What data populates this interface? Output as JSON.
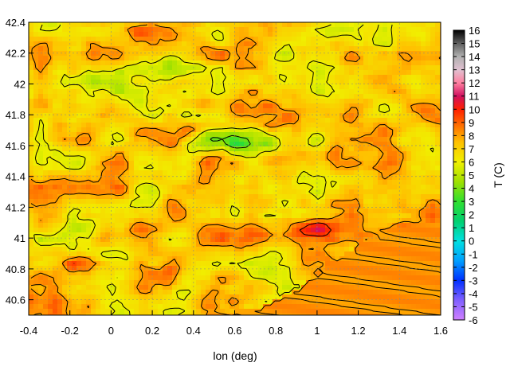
{
  "chart_data": {
    "type": "heatmap",
    "title": "",
    "xlabel": "lon (deg)",
    "ylabel": "",
    "colorbar_label": "T (C)",
    "xlim": [
      -0.4,
      1.6
    ],
    "ylim": [
      40.5,
      42.4
    ],
    "x_ticks": [
      "-0.4",
      "-0.2",
      "0",
      "0.2",
      "0.4",
      "0.6",
      "0.8",
      "1",
      "1.2",
      "1.4",
      "1.6"
    ],
    "y_ticks": [
      "40.6",
      "40.8",
      "41",
      "41.2",
      "41.4",
      "41.6",
      "41.8",
      "42",
      "42.2",
      "42.4"
    ],
    "colorbar_range": [
      -6,
      16
    ],
    "colorbar_ticks": [
      "-6",
      "-5",
      "-4",
      "-3",
      "-2",
      "-1",
      "0",
      "1",
      "2",
      "3",
      "4",
      "5",
      "6",
      "7",
      "8",
      "9",
      "10",
      "11",
      "12",
      "13",
      "14",
      "15",
      "16"
    ],
    "grid": true,
    "contours": true,
    "colormap_stops": [
      {
        "value": -6,
        "color": "#d080ff"
      },
      {
        "value": -4.5,
        "color": "#8060ff"
      },
      {
        "value": -3,
        "color": "#0030ff"
      },
      {
        "value": -1.5,
        "color": "#00a0ff"
      },
      {
        "value": 0,
        "color": "#00e0e0"
      },
      {
        "value": 1.5,
        "color": "#00d070"
      },
      {
        "value": 3,
        "color": "#30e030"
      },
      {
        "value": 4.5,
        "color": "#a0e000"
      },
      {
        "value": 6,
        "color": "#f0f000"
      },
      {
        "value": 7.5,
        "color": "#ffc000"
      },
      {
        "value": 9,
        "color": "#ff6000"
      },
      {
        "value": 10,
        "color": "#ff2000"
      },
      {
        "value": 11,
        "color": "#d01060"
      },
      {
        "value": 12,
        "color": "#ff80a0"
      },
      {
        "value": 13,
        "color": "#e0c0d0"
      },
      {
        "value": 14,
        "color": "#b0b0b0"
      },
      {
        "value": 15,
        "color": "#606060"
      },
      {
        "value": 16,
        "color": "#000000"
      }
    ]
  }
}
